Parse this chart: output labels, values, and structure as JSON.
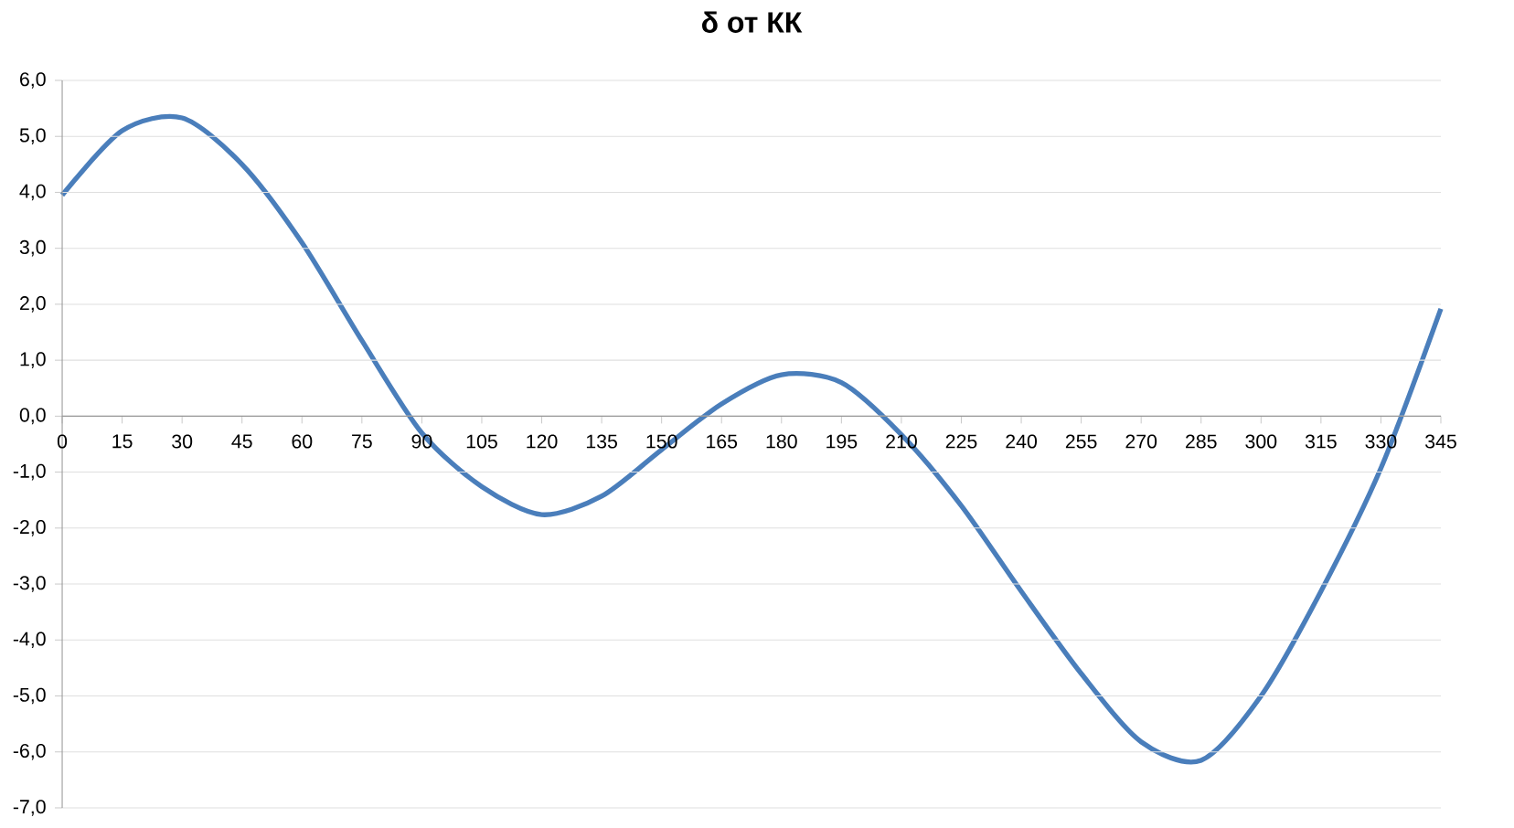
{
  "chart_data": {
    "type": "line",
    "title": "δ от КК",
    "categories": [
      "0",
      "15",
      "30",
      "45",
      "60",
      "75",
      "90",
      "105",
      "120",
      "135",
      "150",
      "165",
      "180",
      "195",
      "210",
      "225",
      "240",
      "255",
      "270",
      "285",
      "300",
      "315",
      "330",
      "345"
    ],
    "series": [
      {
        "color": "#4a7ebb",
        "values": [
          3.95,
          5.1,
          5.33,
          4.5,
          3.1,
          1.35,
          -0.3,
          -1.26,
          -1.76,
          -1.43,
          -0.6,
          0.22,
          0.74,
          0.6,
          -0.33,
          -1.6,
          -3.13,
          -4.6,
          -5.82,
          -6.15,
          -5.0,
          -3.13,
          -0.93,
          1.92
        ]
      }
    ],
    "ylim": [
      -7,
      6
    ],
    "yticks": [
      {
        "value": -7,
        "label": "-7,0"
      },
      {
        "value": -6,
        "label": "-6,0"
      },
      {
        "value": -5,
        "label": "-5,0"
      },
      {
        "value": -4,
        "label": "-4,0"
      },
      {
        "value": -3,
        "label": "-3,0"
      },
      {
        "value": -2,
        "label": "-2,0"
      },
      {
        "value": -1,
        "label": "-1,0"
      },
      {
        "value": 0,
        "label": "0,0"
      },
      {
        "value": 1,
        "label": "1,0"
      },
      {
        "value": 2,
        "label": "2,0"
      },
      {
        "value": 3,
        "label": "3,0"
      },
      {
        "value": 4,
        "label": "4,0"
      },
      {
        "value": 5,
        "label": "5,0"
      },
      {
        "value": 6,
        "label": "6,0"
      }
    ],
    "grid": "y"
  }
}
